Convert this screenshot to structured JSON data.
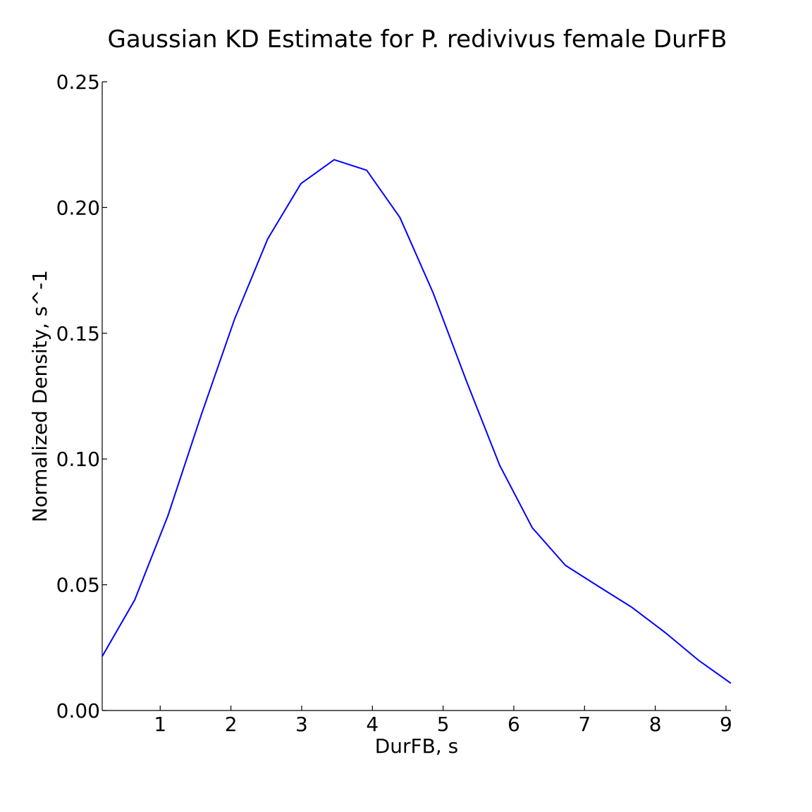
{
  "chart_data": {
    "type": "line",
    "title": "Gaussian KD Estimate for P. redivivus female DurFB",
    "xlabel": "DurFB, s",
    "ylabel": "Normalized Density, s^-1",
    "xlim": [
      0.18,
      9.07
    ],
    "ylim": [
      0.0,
      0.25
    ],
    "x_ticks": [
      1,
      2,
      3,
      4,
      5,
      6,
      7,
      8,
      9
    ],
    "x_tick_labels": [
      "1",
      "2",
      "3",
      "4",
      "5",
      "6",
      "7",
      "8",
      "9"
    ],
    "y_ticks": [
      0.0,
      0.05,
      0.1,
      0.15,
      0.2,
      0.25
    ],
    "y_tick_labels": [
      "0.00",
      "0.05",
      "0.10",
      "0.15",
      "0.20",
      "0.25"
    ],
    "grid": false,
    "series": [
      {
        "color": "#0000ff",
        "x": [
          0.18,
          0.64,
          1.11,
          1.58,
          2.05,
          2.52,
          2.99,
          3.46,
          3.92,
          4.39,
          4.86,
          5.33,
          5.8,
          6.26,
          6.73,
          7.2,
          7.67,
          8.14,
          8.61,
          9.07
        ],
        "y": [
          0.0215,
          0.044,
          0.0775,
          0.1175,
          0.1555,
          0.1875,
          0.2095,
          0.219,
          0.2148,
          0.196,
          0.166,
          0.131,
          0.0975,
          0.0727,
          0.0577,
          0.0493,
          0.041,
          0.031,
          0.02,
          0.0108
        ]
      }
    ]
  }
}
